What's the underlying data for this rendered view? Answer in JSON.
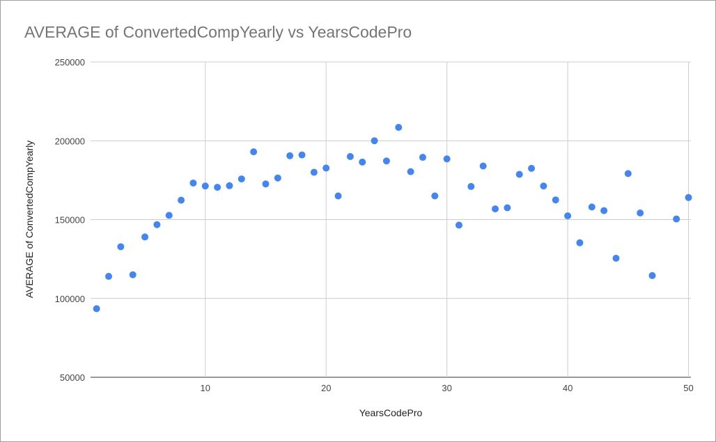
{
  "chart_data": {
    "type": "scatter",
    "title": "AVERAGE of ConvertedCompYearly vs YearsCodePro",
    "xlabel": "YearsCodePro",
    "ylabel": "AVERAGE of ConvertedCompYearly",
    "xlim": [
      0.5,
      50.2
    ],
    "ylim": [
      50000,
      250000
    ],
    "xticks": [
      10,
      20,
      30,
      40,
      50
    ],
    "yticks": [
      50000,
      100000,
      150000,
      200000,
      250000
    ],
    "grid": true,
    "point_color": "#4285f4",
    "series": [
      {
        "x": [
          1,
          2,
          3,
          4,
          5,
          6,
          7,
          8,
          9,
          10,
          11,
          12,
          13,
          14,
          15,
          16,
          17,
          18,
          19,
          20,
          21,
          22,
          23,
          24,
          25,
          26,
          27,
          28,
          29,
          30,
          31,
          32,
          33,
          34,
          35,
          36,
          37,
          38,
          39,
          40,
          41,
          42,
          43,
          44,
          45,
          46,
          47,
          49,
          50
        ],
        "y": [
          93500,
          114000,
          132800,
          115000,
          139000,
          146800,
          152700,
          162300,
          173200,
          171300,
          170500,
          171500,
          175800,
          193000,
          172600,
          176400,
          190500,
          191000,
          180000,
          182700,
          165000,
          190000,
          186500,
          200000,
          187200,
          208500,
          180400,
          189500,
          165000,
          188500,
          146500,
          171000,
          184000,
          156800,
          157500,
          178700,
          182500,
          171300,
          162500,
          152400,
          135300,
          158000,
          155700,
          125500,
          179200,
          154200,
          114500,
          150400,
          164000
        ]
      }
    ]
  }
}
